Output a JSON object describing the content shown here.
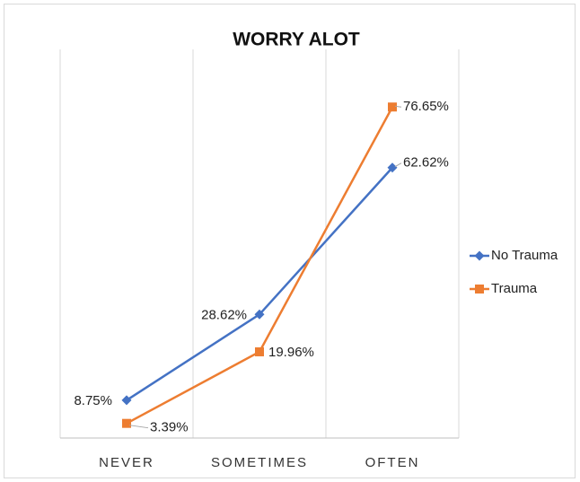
{
  "chart_data": {
    "type": "line",
    "title": "WORRY ALOT",
    "categories": [
      "NEVER",
      "SOMETIMES",
      "OFTEN"
    ],
    "series": [
      {
        "name": "No Trauma",
        "color": "#4472c4",
        "marker": "diamond",
        "values": [
          8.75,
          28.62,
          62.62
        ],
        "value_labels": [
          "8.75%",
          "28.62%",
          "62.62%"
        ]
      },
      {
        "name": "Trauma",
        "color": "#ed7d31",
        "marker": "square",
        "values": [
          3.39,
          19.96,
          76.65
        ],
        "value_labels": [
          "3.39%",
          "19.96%",
          "76.65%"
        ]
      }
    ],
    "ylim": [
      0,
      90
    ],
    "grid": true,
    "legend": "right"
  }
}
